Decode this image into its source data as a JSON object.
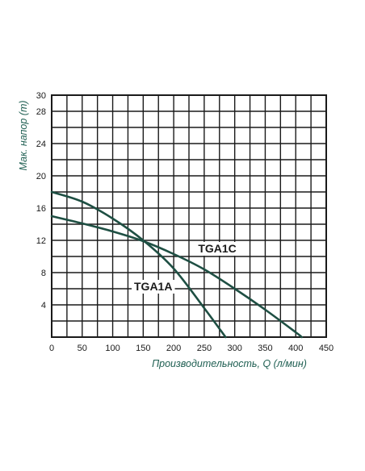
{
  "chart_data": {
    "type": "line",
    "title": "",
    "xlabel": "Производительность, Q (л/мин)",
    "ylabel": "Мак. напор (m)",
    "xlim": [
      0,
      450
    ],
    "ylim": [
      0,
      30
    ],
    "x_ticks": [
      0,
      50,
      100,
      150,
      200,
      250,
      300,
      350,
      400,
      450
    ],
    "y_ticks": [
      4,
      8,
      12,
      16,
      20,
      24,
      28,
      30
    ],
    "x_grid_step": 25,
    "y_grid_step": 2,
    "grid": true,
    "legend": "none",
    "series": [
      {
        "name": "TGA1C",
        "x": [
          0,
          50,
          100,
          150,
          200,
          250,
          300,
          350,
          400,
          410
        ],
        "y": [
          15,
          14.1,
          13.1,
          11.9,
          10.3,
          8.4,
          6.0,
          3.4,
          0.6,
          0
        ],
        "label_at": [
          240,
          10.5
        ]
      },
      {
        "name": "TGA1A",
        "x": [
          0,
          50,
          100,
          150,
          200,
          250,
          285
        ],
        "y": [
          18,
          16.8,
          14.7,
          12,
          8.5,
          3.6,
          0
        ],
        "label_at": [
          135,
          5.8
        ]
      }
    ],
    "colors": {
      "curve": "#1e4f43",
      "grid": "#1a1a1a",
      "axis_title": "#1f5f52"
    }
  }
}
